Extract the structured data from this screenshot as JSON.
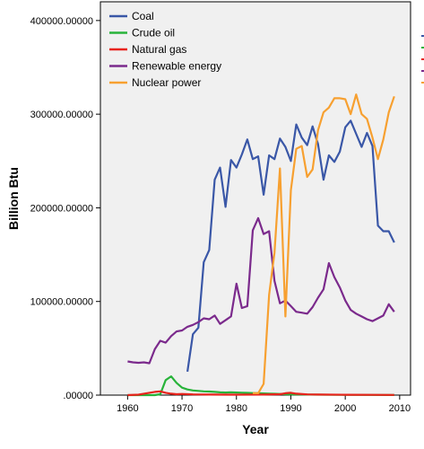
{
  "chart_data": {
    "type": "line",
    "xlabel": "Year",
    "ylabel": "Billion Btu",
    "xlim": [
      1955,
      2012
    ],
    "ylim": [
      0,
      420000
    ],
    "x_ticks": [
      1960,
      1970,
      1980,
      1990,
      2000,
      2010
    ],
    "x_tick_labels": [
      "1960",
      "1970",
      "1980",
      "1990",
      "2000",
      "2010"
    ],
    "y_ticks": [
      0,
      100000,
      200000,
      300000,
      400000
    ],
    "y_tick_labels": [
      ".00000",
      "100000.00000",
      "200000.00000",
      "300000.00000",
      "400000.00000"
    ],
    "grid": false,
    "plot_background": "#f0f0f0",
    "legend_position": "top-left",
    "series": [
      {
        "name": "Coal",
        "color": "#3a57a7",
        "points": [
          [
            1971,
            25000
          ],
          [
            1972,
            65000
          ],
          [
            1973,
            72000
          ],
          [
            1974,
            142000
          ],
          [
            1975,
            155000
          ],
          [
            1976,
            230000
          ],
          [
            1977,
            243000
          ],
          [
            1978,
            201000
          ],
          [
            1979,
            251000
          ],
          [
            1980,
            243000
          ],
          [
            1981,
            257000
          ],
          [
            1982,
            273000
          ],
          [
            1983,
            252000
          ],
          [
            1984,
            255000
          ],
          [
            1985,
            214000
          ],
          [
            1986,
            256000
          ],
          [
            1987,
            252000
          ],
          [
            1988,
            274000
          ],
          [
            1989,
            265000
          ],
          [
            1990,
            250000
          ],
          [
            1991,
            289000
          ],
          [
            1992,
            275000
          ],
          [
            1993,
            267000
          ],
          [
            1994,
            287000
          ],
          [
            1995,
            268000
          ],
          [
            1996,
            230000
          ],
          [
            1997,
            256000
          ],
          [
            1998,
            249000
          ],
          [
            1999,
            260000
          ],
          [
            2000,
            286000
          ],
          [
            2001,
            293000
          ],
          [
            2002,
            279000
          ],
          [
            2003,
            265000
          ],
          [
            2004,
            280000
          ],
          [
            2005,
            266000
          ],
          [
            2006,
            181000
          ],
          [
            2007,
            175000
          ],
          [
            2008,
            175000
          ],
          [
            2009,
            163000
          ]
        ]
      },
      {
        "name": "Crude oil",
        "color": "#28b33a",
        "points": [
          [
            1960,
            0
          ],
          [
            1961,
            0
          ],
          [
            1962,
            0
          ],
          [
            1963,
            0
          ],
          [
            1964,
            0
          ],
          [
            1965,
            0
          ],
          [
            1966,
            1000
          ],
          [
            1967,
            16000
          ],
          [
            1968,
            20000
          ],
          [
            1969,
            13000
          ],
          [
            1970,
            8000
          ],
          [
            1971,
            6000
          ],
          [
            1972,
            5000
          ],
          [
            1973,
            4500
          ],
          [
            1974,
            4000
          ],
          [
            1975,
            3800
          ],
          [
            1976,
            3500
          ],
          [
            1977,
            3000
          ],
          [
            1978,
            2800
          ],
          [
            1979,
            3000
          ],
          [
            1980,
            2800
          ],
          [
            1981,
            2600
          ],
          [
            1982,
            2400
          ],
          [
            1983,
            2200
          ],
          [
            1984,
            2000
          ],
          [
            1985,
            1800
          ],
          [
            1986,
            1600
          ],
          [
            1987,
            1400
          ],
          [
            1988,
            1200
          ],
          [
            1989,
            1000
          ],
          [
            1990,
            900
          ],
          [
            1992,
            700
          ],
          [
            1995,
            500
          ],
          [
            2000,
            300
          ],
          [
            2005,
            200
          ],
          [
            2009,
            100
          ]
        ]
      },
      {
        "name": "Natural gas",
        "color": "#e8231c",
        "points": [
          [
            1960,
            0
          ],
          [
            1962,
            500
          ],
          [
            1963,
            1500
          ],
          [
            1964,
            2500
          ],
          [
            1965,
            3500
          ],
          [
            1966,
            4000
          ],
          [
            1967,
            2500
          ],
          [
            1968,
            1500
          ],
          [
            1969,
            1000
          ],
          [
            1970,
            1200
          ],
          [
            1972,
            800
          ],
          [
            1975,
            600
          ],
          [
            1980,
            500
          ],
          [
            1985,
            600
          ],
          [
            1988,
            1000
          ],
          [
            1989,
            2000
          ],
          [
            1990,
            2500
          ],
          [
            1991,
            1500
          ],
          [
            1993,
            800
          ],
          [
            1995,
            600
          ],
          [
            2000,
            400
          ],
          [
            2005,
            300
          ],
          [
            2009,
            200
          ]
        ]
      },
      {
        "name": "Renewable energy",
        "color": "#7b2a8c",
        "points": [
          [
            1960,
            36000
          ],
          [
            1961,
            35000
          ],
          [
            1962,
            34500
          ],
          [
            1963,
            35000
          ],
          [
            1964,
            34000
          ],
          [
            1965,
            49000
          ],
          [
            1966,
            58000
          ],
          [
            1967,
            56000
          ],
          [
            1968,
            63000
          ],
          [
            1969,
            68000
          ],
          [
            1970,
            69000
          ],
          [
            1971,
            73000
          ],
          [
            1972,
            75000
          ],
          [
            1973,
            78000
          ],
          [
            1974,
            82000
          ],
          [
            1975,
            81000
          ],
          [
            1976,
            85000
          ],
          [
            1977,
            76000
          ],
          [
            1978,
            80000
          ],
          [
            1979,
            84000
          ],
          [
            1980,
            119000
          ],
          [
            1981,
            93000
          ],
          [
            1982,
            95000
          ],
          [
            1983,
            176000
          ],
          [
            1984,
            189000
          ],
          [
            1985,
            172000
          ],
          [
            1986,
            175000
          ],
          [
            1987,
            122000
          ],
          [
            1988,
            98000
          ],
          [
            1989,
            101000
          ],
          [
            1990,
            95000
          ],
          [
            1991,
            89000
          ],
          [
            1992,
            88000
          ],
          [
            1993,
            87000
          ],
          [
            1994,
            94000
          ],
          [
            1995,
            104000
          ],
          [
            1996,
            113000
          ],
          [
            1997,
            141000
          ],
          [
            1998,
            126000
          ],
          [
            1999,
            115000
          ],
          [
            2000,
            101000
          ],
          [
            2001,
            91000
          ],
          [
            2002,
            87000
          ],
          [
            2003,
            84000
          ],
          [
            2004,
            81000
          ],
          [
            2005,
            79000
          ],
          [
            2006,
            82000
          ],
          [
            2007,
            85000
          ],
          [
            2008,
            97000
          ],
          [
            2009,
            89000
          ]
        ]
      },
      {
        "name": "Nuclear power",
        "color": "#f7a030",
        "points": [
          [
            1983,
            2000
          ],
          [
            1984,
            2000
          ],
          [
            1985,
            12000
          ],
          [
            1986,
            107000
          ],
          [
            1987,
            152000
          ],
          [
            1988,
            242000
          ],
          [
            1989,
            84000
          ],
          [
            1990,
            219000
          ],
          [
            1991,
            263000
          ],
          [
            1992,
            266000
          ],
          [
            1993,
            233000
          ],
          [
            1994,
            241000
          ],
          [
            1995,
            283000
          ],
          [
            1996,
            302000
          ],
          [
            1997,
            307000
          ],
          [
            1998,
            317000
          ],
          [
            1999,
            317000
          ],
          [
            2000,
            316000
          ],
          [
            2001,
            300000
          ],
          [
            2002,
            321000
          ],
          [
            2003,
            300000
          ],
          [
            2004,
            295000
          ],
          [
            2005,
            275000
          ],
          [
            2006,
            252000
          ],
          [
            2007,
            273000
          ],
          [
            2008,
            302000
          ],
          [
            2009,
            319000
          ]
        ]
      }
    ]
  }
}
